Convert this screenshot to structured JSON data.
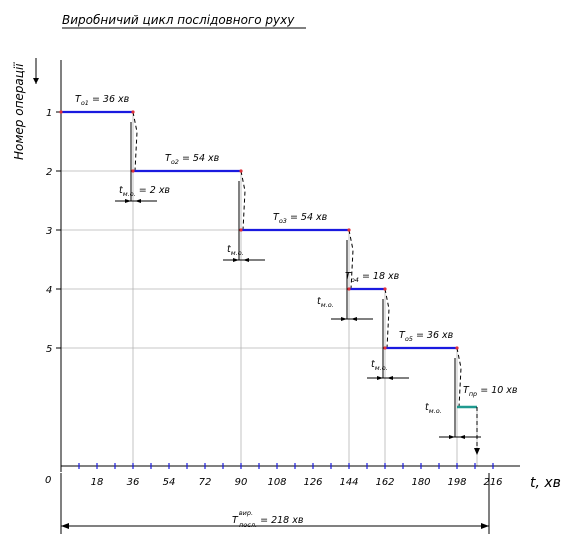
{
  "title": "Виробничий цикл послідовного руху",
  "y_axis_label": "Номер операції",
  "x_axis_label": "t, хв",
  "origin_label": "0",
  "colors": {
    "operation_bar": "#1a1adf",
    "final_bar": "#1f9a8f",
    "grid": "#b4b4b4",
    "line": "#000000",
    "marker": "#e0303a"
  },
  "chart_data": {
    "type": "gantt",
    "x_ticks": [
      "18",
      "36",
      "54",
      "72",
      "90",
      "108",
      "126",
      "144",
      "162",
      "180",
      "198",
      "216"
    ],
    "y_ticks": [
      "1",
      "2",
      "3",
      "4",
      "5"
    ],
    "operations": [
      {
        "operation": 1,
        "start": 0,
        "end": 36,
        "label": {
          "main": "T",
          "sub": "o1",
          "rest": " = 36 хв"
        }
      },
      {
        "operation": 2,
        "start": 36,
        "end": 90,
        "label": {
          "main": "T",
          "sub": "o2",
          "rest": " = 54 хв"
        }
      },
      {
        "operation": 3,
        "start": 90,
        "end": 144,
        "label": {
          "main": "T",
          "sub": "o3",
          "rest": " = 54 хв"
        }
      },
      {
        "operation": 4,
        "start": 144,
        "end": 162,
        "label": {
          "main": "T",
          "sub": "o4",
          "rest": " = 18 хв"
        }
      },
      {
        "operation": 5,
        "start": 162,
        "end": 198,
        "label": {
          "main": "T",
          "sub": "o5",
          "rest": " = 36 хв"
        }
      }
    ],
    "final_stage": {
      "start": 198,
      "end": 208,
      "label": {
        "main": "T",
        "sub": "пр",
        "rest": " = 10 хв"
      }
    },
    "transfer_labels": [
      {
        "main": "t",
        "sub": "м.о.",
        "rest": " = 2 хв"
      },
      {
        "main": "t",
        "sub": "м.о.",
        "rest": ""
      },
      {
        "main": "t",
        "sub": "м.о.",
        "rest": ""
      },
      {
        "main": "t",
        "sub": "м.о.",
        "rest": ""
      },
      {
        "main": "t",
        "sub": "м.о.",
        "rest": ""
      }
    ],
    "total": {
      "main": "T",
      "sub": "посл.",
      "sup": "вир.",
      "rest": " = 218 хв"
    }
  }
}
